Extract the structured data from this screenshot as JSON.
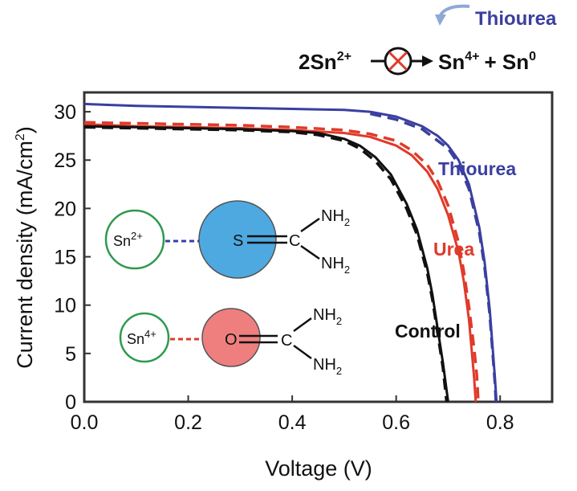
{
  "chart_data": {
    "type": "line",
    "xlabel": "Voltage (V)",
    "ylabel": "Current density (mA/cm",
    "ylabel_sup": "2",
    "ylabel_end": ")",
    "xlim": [
      0.0,
      0.9
    ],
    "ylim": [
      0,
      32
    ],
    "xticks": [
      "0.0",
      "0.2",
      "0.4",
      "0.6",
      "0.8"
    ],
    "xtick_values": [
      0.0,
      0.2,
      0.4,
      0.6,
      0.8
    ],
    "yticks": [
      "0",
      "5",
      "10",
      "15",
      "20",
      "25",
      "30"
    ],
    "ytick_values": [
      0,
      5,
      10,
      15,
      20,
      25,
      30
    ],
    "grid": false,
    "series": [
      {
        "name": "Thiourea",
        "color": "#3a3fa0",
        "dash": false,
        "points": [
          [
            0.0,
            30.8
          ],
          [
            0.1,
            30.6
          ],
          [
            0.2,
            30.5
          ],
          [
            0.3,
            30.4
          ],
          [
            0.4,
            30.3
          ],
          [
            0.5,
            30.2
          ],
          [
            0.55,
            30.0
          ],
          [
            0.6,
            29.5
          ],
          [
            0.65,
            28.5
          ],
          [
            0.68,
            27.5
          ],
          [
            0.7,
            26.5
          ],
          [
            0.72,
            25.0
          ],
          [
            0.74,
            22.5
          ],
          [
            0.76,
            18.0
          ],
          [
            0.77,
            14.5
          ],
          [
            0.78,
            9.5
          ],
          [
            0.785,
            6.0
          ],
          [
            0.79,
            2.5
          ],
          [
            0.793,
            0.0
          ]
        ]
      },
      {
        "name": "Thiourea-dashed",
        "color": "#3a3fa0",
        "dash": true,
        "points": [
          [
            0.55,
            29.8
          ],
          [
            0.6,
            29.2
          ],
          [
            0.65,
            28.2
          ],
          [
            0.7,
            26.2
          ],
          [
            0.72,
            24.6
          ],
          [
            0.74,
            22.0
          ],
          [
            0.76,
            17.5
          ],
          [
            0.77,
            14.0
          ],
          [
            0.78,
            9.0
          ],
          [
            0.785,
            5.5
          ],
          [
            0.79,
            2.0
          ],
          [
            0.792,
            0.0
          ]
        ]
      },
      {
        "name": "Urea",
        "color": "#e03a2a",
        "dash": false,
        "points": [
          [
            0.0,
            28.7
          ],
          [
            0.1,
            28.5
          ],
          [
            0.2,
            28.4
          ],
          [
            0.3,
            28.3
          ],
          [
            0.4,
            28.1
          ],
          [
            0.5,
            27.8
          ],
          [
            0.55,
            27.4
          ],
          [
            0.6,
            26.5
          ],
          [
            0.63,
            25.5
          ],
          [
            0.66,
            23.8
          ],
          [
            0.68,
            22.0
          ],
          [
            0.7,
            19.3
          ],
          [
            0.72,
            15.5
          ],
          [
            0.73,
            12.5
          ],
          [
            0.74,
            8.5
          ],
          [
            0.745,
            5.5
          ],
          [
            0.75,
            2.5
          ],
          [
            0.753,
            0.0
          ]
        ]
      },
      {
        "name": "Urea-dashed",
        "color": "#e03a2a",
        "dash": true,
        "points": [
          [
            0.0,
            28.9
          ],
          [
            0.1,
            28.8
          ],
          [
            0.2,
            28.7
          ],
          [
            0.3,
            28.6
          ],
          [
            0.4,
            28.4
          ],
          [
            0.5,
            28.1
          ],
          [
            0.55,
            27.7
          ],
          [
            0.6,
            27.0
          ],
          [
            0.63,
            26.0
          ],
          [
            0.66,
            24.5
          ],
          [
            0.68,
            22.8
          ],
          [
            0.7,
            20.3
          ],
          [
            0.72,
            16.5
          ],
          [
            0.73,
            13.5
          ],
          [
            0.74,
            9.8
          ],
          [
            0.75,
            5.5
          ],
          [
            0.755,
            2.8
          ],
          [
            0.758,
            0.0
          ]
        ]
      },
      {
        "name": "Control",
        "color": "#111111",
        "dash": false,
        "points": [
          [
            0.0,
            28.5
          ],
          [
            0.1,
            28.4
          ],
          [
            0.2,
            28.3
          ],
          [
            0.3,
            28.2
          ],
          [
            0.4,
            28.0
          ],
          [
            0.45,
            27.8
          ],
          [
            0.5,
            27.2
          ],
          [
            0.53,
            26.5
          ],
          [
            0.56,
            25.3
          ],
          [
            0.59,
            23.5
          ],
          [
            0.62,
            20.5
          ],
          [
            0.64,
            17.8
          ],
          [
            0.66,
            13.8
          ],
          [
            0.67,
            11.0
          ],
          [
            0.68,
            7.5
          ],
          [
            0.69,
            4.0
          ],
          [
            0.695,
            2.0
          ],
          [
            0.7,
            0.0
          ]
        ]
      },
      {
        "name": "Control-dashed",
        "color": "#111111",
        "dash": true,
        "points": [
          [
            0.0,
            28.4
          ],
          [
            0.1,
            28.3
          ],
          [
            0.2,
            28.2
          ],
          [
            0.3,
            28.1
          ],
          [
            0.4,
            27.9
          ],
          [
            0.45,
            27.6
          ],
          [
            0.5,
            27.0
          ],
          [
            0.53,
            26.2
          ],
          [
            0.56,
            24.9
          ],
          [
            0.59,
            23.0
          ],
          [
            0.62,
            20.0
          ],
          [
            0.64,
            17.3
          ],
          [
            0.66,
            13.3
          ],
          [
            0.67,
            10.5
          ],
          [
            0.68,
            7.0
          ],
          [
            0.69,
            3.5
          ],
          [
            0.697,
            0.0
          ]
        ]
      }
    ],
    "series_labels": [
      {
        "text": "Thiourea",
        "color": "#3a3fa0"
      },
      {
        "text": "Urea",
        "color": "#e03a2a"
      },
      {
        "text": "Control",
        "color": "#111111"
      }
    ],
    "reaction": {
      "left": "2Sn",
      "left_sup": "2+",
      "right1": "Sn",
      "right1_sup": "4+",
      "plus": "+ Sn",
      "right2_sup": "0",
      "inhibitor": "Thiourea",
      "inhibitor_color": "#3a3fa0"
    },
    "inset": {
      "ion1": "Sn",
      "ion1_sup": "2+",
      "ion2": "Sn",
      "ion2_sup": "4+",
      "mol1_atom": "S",
      "mol1_carbon": "C",
      "mol2_atom": "O",
      "mol2_carbon": "C",
      "nh": "NH",
      "nh_sub": "2",
      "mol1_color": "#4ea9e0",
      "mol2_color": "#ef7f7f",
      "ion_ring_color": "#2e9a4e",
      "link1_color": "#3a3fa0",
      "link2_color": "#e03a2a"
    }
  }
}
